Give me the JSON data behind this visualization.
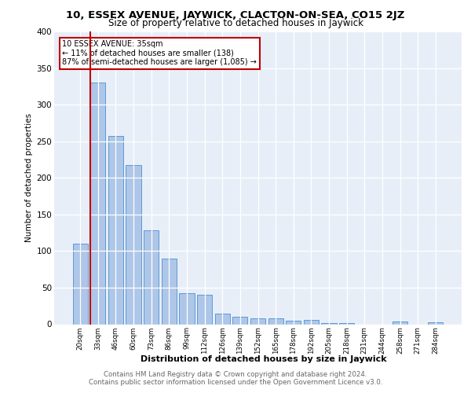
{
  "title1": "10, ESSEX AVENUE, JAYWICK, CLACTON-ON-SEA, CO15 2JZ",
  "title2": "Size of property relative to detached houses in Jaywick",
  "xlabel": "Distribution of detached houses by size in Jaywick",
  "ylabel": "Number of detached properties",
  "categories": [
    "20sqm",
    "33sqm",
    "46sqm",
    "60sqm",
    "73sqm",
    "86sqm",
    "99sqm",
    "112sqm",
    "126sqm",
    "139sqm",
    "152sqm",
    "165sqm",
    "178sqm",
    "192sqm",
    "205sqm",
    "218sqm",
    "231sqm",
    "244sqm",
    "258sqm",
    "271sqm",
    "284sqm"
  ],
  "values": [
    110,
    330,
    257,
    217,
    128,
    90,
    42,
    40,
    15,
    10,
    8,
    8,
    5,
    6,
    2,
    2,
    0,
    0,
    4,
    0,
    3
  ],
  "bar_color": "#aec6e8",
  "bar_edge_color": "#5b9bd5",
  "highlight_bar_index": 1,
  "highlight_color": "#c00000",
  "annotation_title": "10 ESSEX AVENUE: 35sqm",
  "annotation_line1": "← 11% of detached houses are smaller (138)",
  "annotation_line2": "87% of semi-detached houses are larger (1,085) →",
  "annotation_box_color": "#c00000",
  "ylim": [
    0,
    400
  ],
  "yticks": [
    0,
    50,
    100,
    150,
    200,
    250,
    300,
    350,
    400
  ],
  "footer1": "Contains HM Land Registry data © Crown copyright and database right 2024.",
  "footer2": "Contains public sector information licensed under the Open Government Licence v3.0.",
  "background_color": "#e8eef8",
  "grid_color": "#ffffff"
}
